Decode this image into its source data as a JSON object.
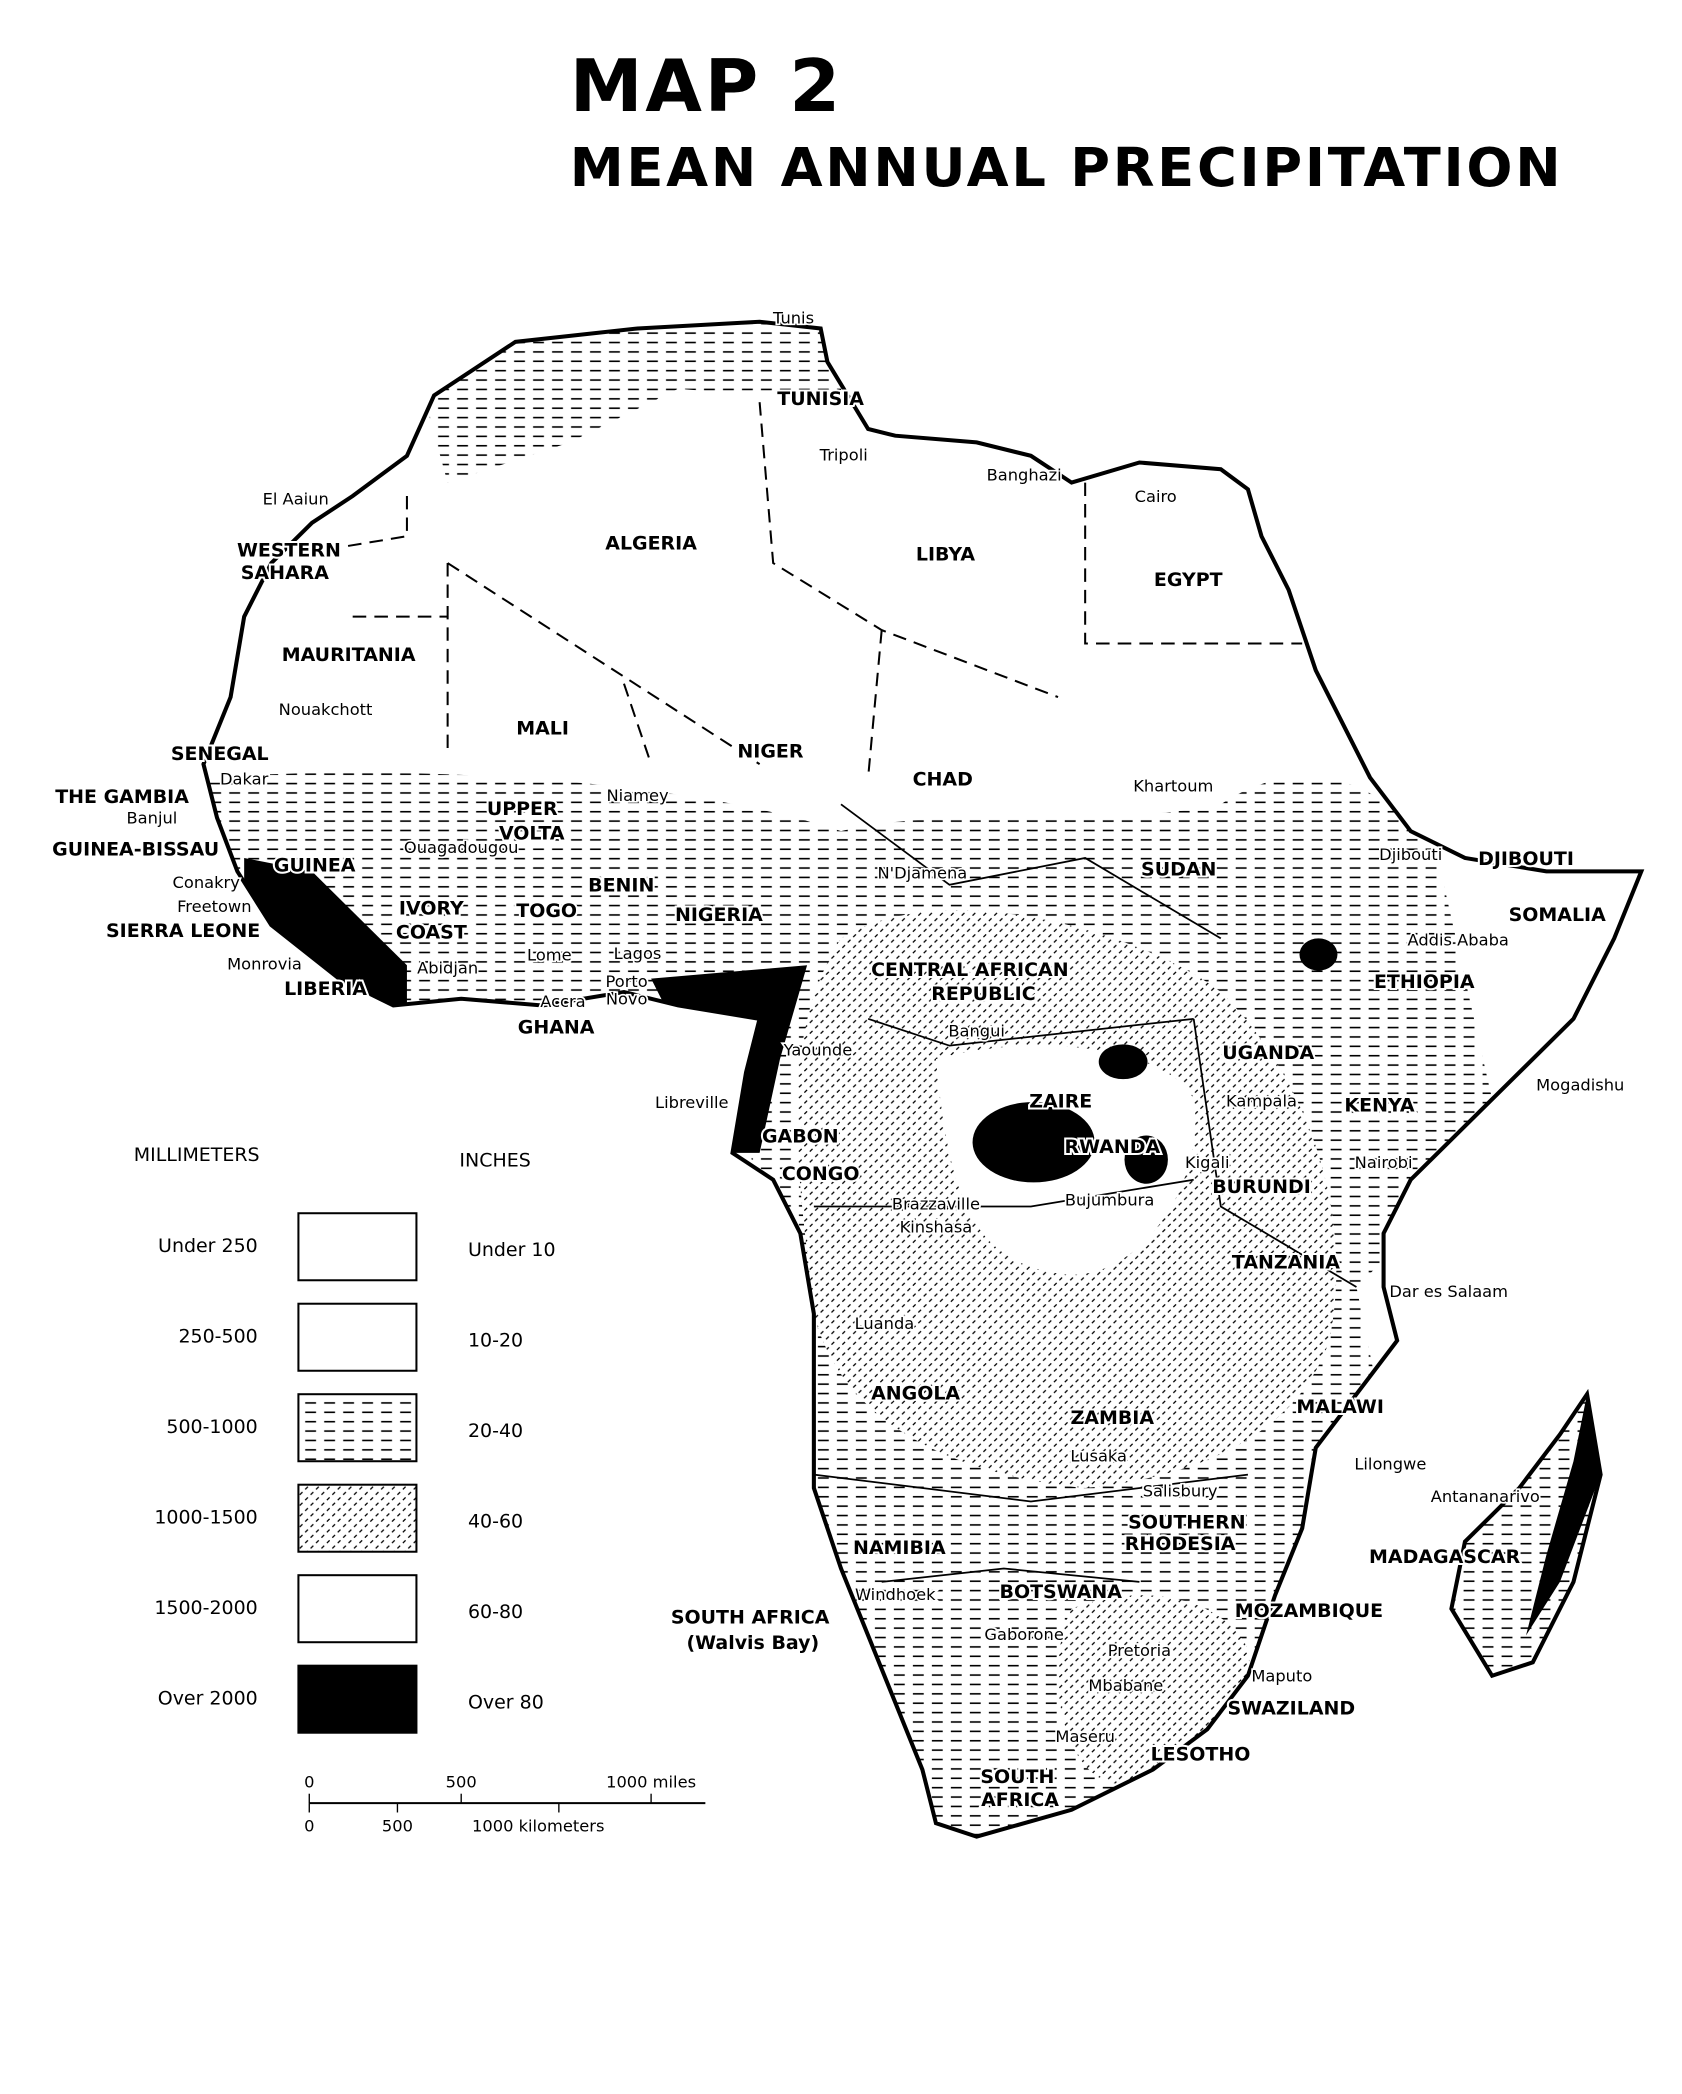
{
  "title": {
    "line1": "MAP 2",
    "line2": "MEAN ANNUAL PRECIPITATION"
  },
  "legend": {
    "millimeters_header": "MILLIMETERS",
    "inches_header": "INCHES",
    "rows": [
      {
        "millimeters": "Under 250",
        "inches": "Under 10"
      },
      {
        "millimeters": "250-500",
        "inches": "10-20"
      },
      {
        "millimeters": "500-1000",
        "inches": "20-40"
      },
      {
        "millimeters": "1000-1500",
        "inches": "40-60"
      },
      {
        "millimeters": "1500-2000",
        "inches": "60-80"
      },
      {
        "millimeters": "Over 2000",
        "inches": "Over 80"
      }
    ]
  },
  "scale": {
    "miles": [
      "0",
      "500",
      "1000 miles"
    ],
    "kilometers": [
      "0",
      "500",
      "1000 kilometers"
    ]
  },
  "labels": [
    "Tunis",
    "TUNISIA",
    "Tripoli",
    "Banghazi",
    "Cairo",
    "El Aaiun",
    "WESTERN",
    "SAHARA",
    "ALGERIA",
    "LIBYA",
    "EGYPT",
    "MAURITANIA",
    "Nouakchott",
    "MALI",
    "NIGER",
    "CHAD",
    "Khartoum",
    "SENEGAL",
    "Dakar",
    "THE GAMBIA",
    "Banjul",
    "GUINEA-BISSAU",
    "GUINEA",
    "Conakry",
    "Freetown",
    "SIERRA LEONE",
    "Monrovia",
    "LIBERIA",
    "IVORY",
    "COAST",
    "TOGO",
    "BENIN",
    "NIGERIA",
    "UPPER",
    "VOLTA",
    "Niamey",
    "Ouagadougou",
    "Accra",
    "GHANA",
    "Lome",
    "Lagos",
    "Porto",
    "Novo",
    "Abidjan",
    "SUDAN",
    "N'Djamena",
    "DJIBOUTI",
    "Djibouti",
    "SOMALIA",
    "Addis Ababa",
    "ETHIOPIA",
    "CENTRAL AFRICAN",
    "REPUBLIC",
    "Bangui",
    "Yaounde",
    "GABON",
    "Libreville",
    "CONGO",
    "ZAIRE",
    "UGANDA",
    "Kampala",
    "KENYA",
    "RWANDA",
    "Kigali",
    "BURUNDI",
    "Bujumbura",
    "Nairobi",
    "Mogadishu",
    "Brazzaville",
    "Kinshasa",
    "TANZANIA",
    "Dar es Salaam",
    "Luanda",
    "ANGOLA",
    "ZAMBIA",
    "MALAWI",
    "Lusaka",
    "Lilongwe",
    "Salisbury",
    "Antananarivo",
    "SOUTHERN",
    "RHODESIA",
    "MADAGASCAR",
    "NAMIBIA",
    "Windhoek",
    "BOTSWANA",
    "MOZAMBIQUE",
    "SOUTH AFRICA",
    "(Walvis Bay)",
    "Gaborone",
    "Pretoria",
    "Maputo",
    "Mbabane",
    "SWAZILAND",
    "Maseru",
    "LESOTHO",
    "SOUTH",
    "AFRICA"
  ]
}
